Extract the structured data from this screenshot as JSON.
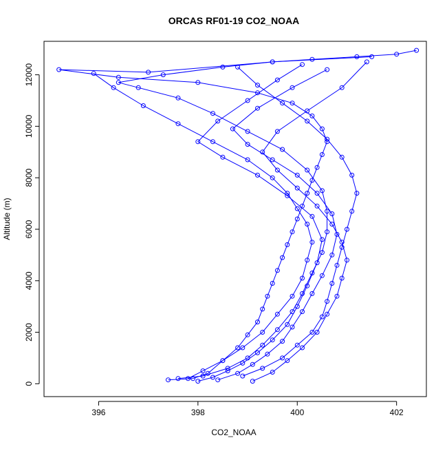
{
  "chart_data": {
    "type": "line",
    "title": "ORCAS RF01-19 CO2_NOAA",
    "xlabel": "CO2_NOAA",
    "ylabel": "Altitude (m)",
    "xlim": [
      394.9,
      402.6
    ],
    "ylim": [
      -500,
      13300
    ],
    "xticks": [
      396,
      398,
      400,
      402
    ],
    "yticks": [
      0,
      2000,
      4000,
      6000,
      8000,
      10000,
      12000
    ],
    "markers": "open-circle",
    "series_color": "#0000ff",
    "grid": false,
    "series": [
      {
        "x": [
          397.4,
          397.9,
          398.2,
          398.5,
          398.8,
          399.0,
          399.2,
          399.3,
          399.4,
          399.5,
          399.6,
          399.7,
          399.8,
          399.9,
          400.0,
          400.1,
          400.2,
          400.3,
          400.4,
          400.5,
          400.6,
          400.5,
          400.3,
          399.9,
          399.2,
          398.0,
          396.4,
          395.2,
          397.0,
          399.5,
          401.5
        ],
        "y": [
          150,
          200,
          400,
          900,
          1400,
          1900,
          2400,
          2900,
          3400,
          3900,
          4400,
          4900,
          5400,
          5900,
          6400,
          6900,
          7400,
          7900,
          8400,
          8900,
          9400,
          9900,
          10400,
          10900,
          11300,
          11700,
          11900,
          12200,
          12100,
          12500,
          12700
        ]
      },
      {
        "x": [
          397.6,
          398.1,
          398.6,
          399.0,
          399.3,
          399.6,
          399.9,
          400.1,
          400.3,
          400.5,
          400.6,
          400.6,
          400.5,
          400.2,
          399.7,
          399.0,
          398.3,
          397.6,
          396.8,
          396.4,
          397.3,
          398.5,
          399.5,
          400.3,
          401.2,
          402.0,
          402.4
        ],
        "y": [
          200,
          300,
          600,
          1000,
          1500,
          2100,
          2800,
          3500,
          4300,
          5100,
          5900,
          6700,
          7500,
          8300,
          9100,
          9800,
          10500,
          11100,
          11500,
          11700,
          12000,
          12300,
          12500,
          12600,
          12700,
          12800,
          12950
        ]
      },
      {
        "x": [
          398.0,
          398.3,
          398.6,
          398.9,
          399.2,
          399.5,
          399.8,
          400.0,
          400.2,
          400.4,
          400.5,
          400.3,
          399.8,
          399.2,
          398.5,
          398.0,
          398.4,
          399.0,
          399.6,
          400.1
        ],
        "y": [
          100,
          250,
          500,
          800,
          1200,
          1700,
          2300,
          3000,
          3800,
          4700,
          5600,
          6500,
          7300,
          8100,
          8800,
          9400,
          10200,
          11000,
          11800,
          12400
        ]
      },
      {
        "x": [
          398.4,
          398.8,
          399.1,
          399.4,
          399.7,
          399.9,
          400.1,
          400.3,
          400.5,
          400.7,
          400.8,
          400.7,
          400.4,
          400.0,
          399.5,
          399.0,
          398.7,
          399.2,
          399.9,
          400.6
        ],
        "y": [
          150,
          400,
          750,
          1150,
          1650,
          2200,
          2800,
          3500,
          4200,
          5000,
          5800,
          6600,
          7400,
          8100,
          8700,
          9300,
          9900,
          10700,
          11500,
          12200
        ]
      },
      {
        "x": [
          398.9,
          399.3,
          399.7,
          400.0,
          400.3,
          400.5,
          400.6,
          400.7,
          400.8,
          400.9,
          401.0,
          401.1,
          401.2,
          401.1,
          400.9,
          400.6,
          400.2,
          399.7,
          399.2,
          398.8
        ],
        "y": [
          300,
          600,
          1000,
          1500,
          2000,
          2600,
          3200,
          3900,
          4600,
          5300,
          6000,
          6700,
          7400,
          8100,
          8800,
          9500,
          10200,
          10900,
          11600,
          12300
        ]
      },
      {
        "x": [
          397.8,
          398.1,
          398.5,
          398.9,
          399.3,
          399.6,
          399.9,
          400.1,
          400.2,
          400.3,
          400.2,
          400.0,
          399.8,
          399.5,
          399.0,
          398.3,
          397.6,
          396.9,
          396.3,
          395.9
        ],
        "y": [
          200,
          500,
          900,
          1400,
          2000,
          2700,
          3400,
          4100,
          4800,
          5500,
          6200,
          6800,
          7400,
          8000,
          8700,
          9400,
          10100,
          10800,
          11500,
          12050
        ]
      },
      {
        "x": [
          399.1,
          399.5,
          399.8,
          400.1,
          400.4,
          400.6,
          400.8,
          400.9,
          401.0,
          400.9,
          400.7,
          400.4,
          400.0,
          399.6,
          399.3,
          399.6,
          400.2,
          400.9,
          401.4
        ],
        "y": [
          100,
          450,
          900,
          1400,
          2000,
          2700,
          3400,
          4100,
          4800,
          5500,
          6200,
          6900,
          7600,
          8300,
          9000,
          9800,
          10600,
          11500,
          12500
        ]
      }
    ]
  }
}
